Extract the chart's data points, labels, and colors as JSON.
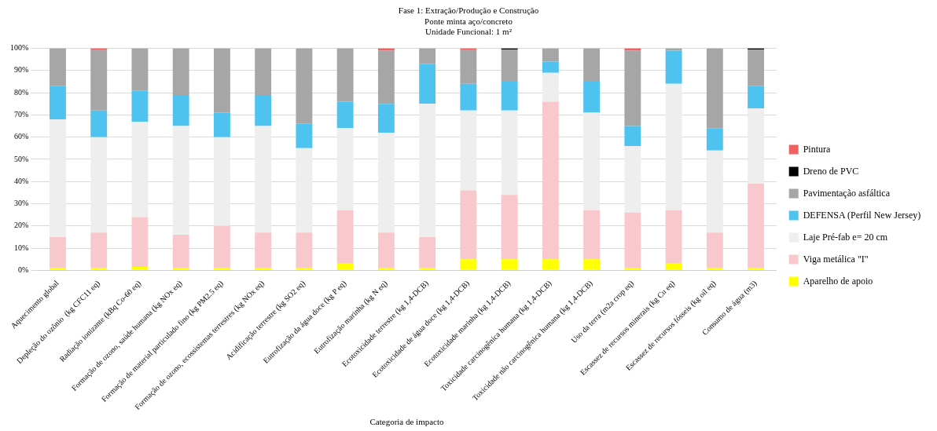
{
  "chart_data": {
    "type": "bar",
    "title": "Fase 1: Extração/Produção e Construção",
    "subtitle": "Ponte minta aço/concreto\nUnidade Funcional: 1 m²",
    "xlabel": "Categoria de impacto",
    "categories": [
      "Aquecimento global",
      "Depleção do ozônio  (kg CFC11 eq)",
      "Radiação ionizante (kBq Co-60 eq)",
      "Formação de ozono, saúde humana (kg NOx eq)",
      "Formação de material particulado fino (kg PM2.5 eq)",
      "Formação de ozono, ecossistemas terrestres (kg NOx eq)",
      "Acidificação terrestre (kg SO2 eq)",
      "Eutrofização da água doce (kg P eq)",
      "Eutrofização marinha (kg N eq)",
      "Ecotoxicidade terrestre (kg 1,4-DCB)",
      "Ecotoxicidade de água doce (kg 1,4-DCB)",
      "Ecotoxicidade marinha (kg 1,4-DCB)",
      "Toxicidade carcinogênica humana (kg 1,4-DCB)",
      "Toxicidade não carcinogênica humana (kg 1,4-DCB)",
      "Uso da terra (m2a crop eq)",
      "Escassez de recursos minerais (kg Cu eq)",
      "Escassez de recursos fósseis (kg oil eq)",
      "Consumo de água (m3)"
    ],
    "stacked": true,
    "series": [
      {
        "name": "Aparelho de apoio",
        "color": "#ffff00",
        "values": [
          1,
          1,
          1.5,
          1,
          1,
          1,
          1,
          3,
          1,
          1,
          5,
          5,
          5,
          5,
          1,
          3,
          1,
          1
        ]
      },
      {
        "name": "Viga metálica \"I\"",
        "color": "#f9c8cc",
        "values": [
          14,
          16,
          22.5,
          15,
          19,
          16,
          16,
          24,
          16,
          14,
          31,
          29,
          71,
          22,
          25,
          24,
          16,
          38
        ]
      },
      {
        "name": "Laje Pré-fab e= 20 cm",
        "color": "#eeeeee",
        "values": [
          53,
          43,
          43,
          49,
          40,
          48,
          38,
          37,
          45,
          60,
          36,
          38,
          13,
          44,
          30,
          57,
          37,
          34
        ]
      },
      {
        "name": "DEFENSA (Perfil New Jersey)",
        "color": "#4fc3f0",
        "values": [
          15,
          12,
          14,
          14,
          11,
          14,
          11,
          12,
          13,
          18,
          12,
          13,
          5,
          14,
          9,
          15,
          10,
          10
        ]
      },
      {
        "name": "Pavimentação asfáltica",
        "color": "#a6a6a6",
        "values": [
          17,
          27.5,
          19,
          21,
          29,
          21,
          34,
          24,
          24,
          7,
          15.5,
          14.5,
          6,
          15,
          34,
          1,
          36,
          16.5
        ]
      },
      {
        "name": "Dreno de PVC",
        "color": "#000000",
        "values": [
          0,
          0,
          0,
          0,
          0,
          0,
          0,
          0,
          0,
          0,
          0,
          0.5,
          0,
          0,
          0,
          0,
          0,
          0.5
        ]
      },
      {
        "name": "Pintura",
        "color": "#f06060",
        "values": [
          0,
          0.5,
          0,
          0,
          0,
          0,
          0,
          0,
          1,
          0,
          0.5,
          0,
          0,
          0,
          1,
          0,
          0,
          0
        ]
      }
    ],
    "ylim": [
      0,
      100
    ],
    "yticks": [
      {
        "value": 0,
        "label": "0%"
      },
      {
        "value": 10,
        "label": "10%"
      },
      {
        "value": 20,
        "label": "20%"
      },
      {
        "value": 30,
        "label": "30%"
      },
      {
        "value": 40,
        "label": "40%"
      },
      {
        "value": 50,
        "label": "50%"
      },
      {
        "value": 60,
        "label": "60%"
      },
      {
        "value": 70,
        "label": "70%"
      },
      {
        "value": 80,
        "label": "80%"
      },
      {
        "value": 90,
        "label": "90%"
      },
      {
        "value": 100,
        "label": "100%"
      }
    ],
    "grid": "y",
    "legend": "right"
  }
}
